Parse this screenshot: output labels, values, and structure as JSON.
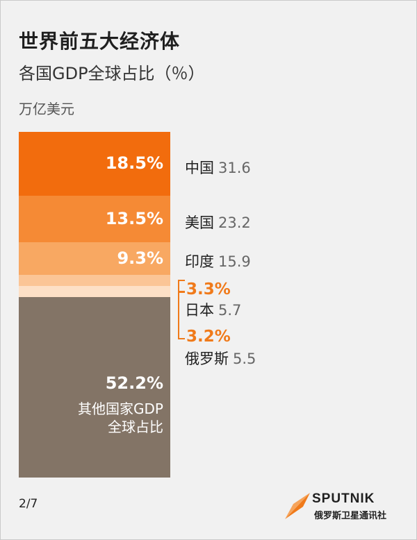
{
  "header": {
    "title": "世界前五大经济体",
    "subtitle": "各国GDP全球占比（％）",
    "unit": "万亿美元"
  },
  "chart_data": {
    "type": "bar",
    "title": "世界前五大经济体",
    "subtitle": "各国GDP全球占比（％）",
    "unit": "万亿美元",
    "categories": [
      "中国",
      "美国",
      "印度",
      "日本",
      "俄罗斯",
      "其他国家GDP全球占比"
    ],
    "shares_pct": [
      18.5,
      13.5,
      9.3,
      3.3,
      3.2,
      52.2
    ],
    "share_labels": [
      "18.5%",
      "13.5%",
      "9.3%",
      "3.3%",
      "3.2%",
      "52.2%"
    ],
    "gdp_trillion_usd": [
      "31.6",
      "23.2",
      "15.9",
      "5.7",
      "5.5"
    ],
    "other": {
      "label_line1": "其他国家GDP",
      "label_line2": "全球占比"
    },
    "colors": [
      "#f26c0d",
      "#f58a35",
      "#f8a862",
      "#fbc596",
      "#fde0c6",
      "#837466"
    ]
  },
  "footer": {
    "page": "2/7",
    "brand": "SPUTNIK",
    "brand_sub": "俄罗斯卫星通讯社",
    "brand_color": "#f07a1a"
  }
}
